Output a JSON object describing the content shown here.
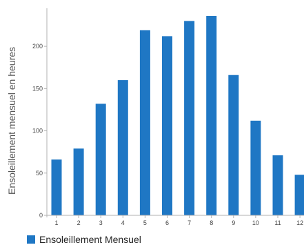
{
  "chart_data": {
    "type": "bar",
    "ylabel": "Ensoleillement mensuel en heures",
    "xlabel": "",
    "categories": [
      "1",
      "2",
      "3",
      "4",
      "5",
      "6",
      "7",
      "8",
      "9",
      "10",
      "11",
      "12"
    ],
    "series": [
      {
        "name": "Ensoleillement Mensuel",
        "values": [
          66,
          79,
          132,
          160,
          219,
          212,
          230,
          236,
          166,
          112,
          71,
          48
        ]
      }
    ],
    "ylim": [
      0,
      245
    ],
    "yticks": [
      0,
      50,
      100,
      150,
      200
    ],
    "grid": false,
    "legend_position": "bottom-left",
    "bar_color": "#1f77c4"
  }
}
